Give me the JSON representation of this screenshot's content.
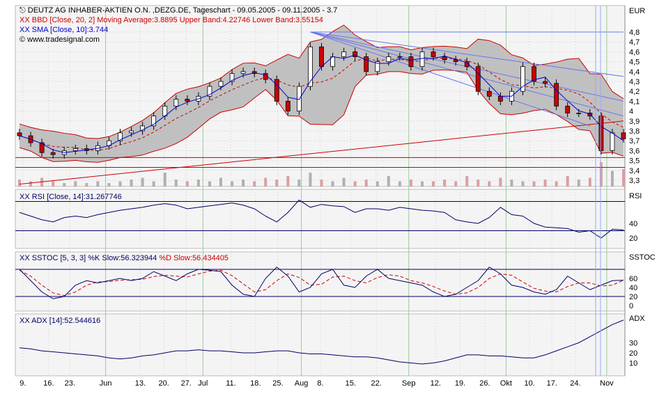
{
  "header": {
    "title": "DEUTZ AG INHABER-AKTIEN O.N. ,DEZG.DE, Tageschart - 09.05.2005 - 09.11.2005 - 3.7",
    "bbd": "XX BBD [Close, 20, 2] Moving Average:3.8895 Upper Band:4.22746 Lower Band:3.55154",
    "sma": "XX SMA [Close, 10]:3.744",
    "copyright": "© www.tradesignal.com"
  },
  "colors": {
    "background": "#ffffff",
    "panel": "#f4f4f4",
    "band_fill": "#c0c0c0",
    "band_line": "#cc0000",
    "sma": "#0000cc",
    "bull": "#ffffff",
    "bear": "#cc0000",
    "level": "#000066",
    "rsi": "#000066",
    "k": "#000066",
    "d": "#cc0000",
    "adx": "#000066",
    "fan": "#6677ee"
  },
  "chart_data": [
    {
      "type": "candlestick",
      "title": "DEUTZ AG INHABER-AKTIEN O.N. ,DEZG.DE, Tageschart - 09.05.2005 - 09.11.2005 - 3.7",
      "ylabel": "EUR",
      "ylim": [
        3.2,
        4.9
      ],
      "yticks": [
        "4,8",
        "4,7",
        "4,6",
        "4,5",
        "4,4",
        "4,3",
        "4,2",
        "4,1",
        "4",
        "3,9",
        "3,8",
        "3,7",
        "3,6",
        "3,5",
        "3,4",
        "3,3"
      ],
      "close": [
        3.75,
        3.68,
        3.58,
        3.56,
        3.6,
        3.62,
        3.6,
        3.65,
        3.7,
        3.78,
        3.8,
        3.85,
        3.95,
        4.05,
        4.12,
        4.1,
        4.15,
        4.25,
        4.3,
        4.38,
        4.4,
        4.38,
        4.32,
        4.1,
        4.0,
        4.25,
        4.65,
        4.45,
        4.55,
        4.6,
        4.55,
        4.4,
        4.5,
        4.55,
        4.55,
        4.45,
        4.6,
        4.55,
        4.52,
        4.5,
        4.45,
        4.2,
        4.15,
        4.1,
        4.2,
        4.45,
        4.3,
        4.28,
        4.05,
        3.98,
        3.98,
        3.95,
        3.6,
        3.78,
        3.72
      ],
      "volume": [
        4,
        3,
        5,
        3,
        2,
        3,
        2,
        3,
        2,
        3,
        4,
        5,
        3,
        8,
        4,
        3,
        4,
        3,
        5,
        3,
        4,
        3,
        5,
        4,
        6,
        4,
        8,
        4,
        3,
        5,
        3,
        4,
        3,
        6,
        3,
        4,
        3,
        3,
        4,
        3,
        6,
        4,
        3,
        5,
        4,
        3,
        3,
        4,
        3,
        6,
        4,
        5,
        14,
        9,
        10
      ],
      "horizontal_lines": [
        3.53,
        3.43
      ],
      "trendlines": [
        {
          "color": "red",
          "from": [
            0,
            3.26
          ],
          "to": [
            54,
            3.9
          ]
        },
        {
          "color": "blue",
          "from": [
            26,
            4.8
          ],
          "to": [
            54,
            4.8
          ]
        },
        {
          "color": "blue",
          "from": [
            26,
            4.8
          ],
          "to": [
            54,
            4.35
          ]
        },
        {
          "color": "blue",
          "from": [
            26,
            4.8
          ],
          "to": [
            54,
            4.1
          ]
        },
        {
          "color": "blue",
          "from": [
            26,
            4.8
          ],
          "to": [
            54,
            3.95
          ]
        },
        {
          "color": "blue",
          "from": [
            26,
            4.8
          ],
          "to": [
            51,
            3.85
          ]
        }
      ]
    },
    {
      "type": "line",
      "label": "XX RSI [Close, 14]:31.267746",
      "axis_title": "RSI",
      "ylim": [
        0,
        100
      ],
      "yticks": [
        "40",
        "20"
      ],
      "levels": [
        70,
        30
      ],
      "values": [
        55,
        50,
        45,
        42,
        48,
        50,
        48,
        52,
        55,
        58,
        60,
        62,
        65,
        67,
        65,
        60,
        62,
        64,
        66,
        68,
        65,
        60,
        50,
        42,
        55,
        72,
        62,
        66,
        64,
        63,
        55,
        60,
        60,
        58,
        62,
        60,
        58,
        57,
        55,
        45,
        42,
        40,
        48,
        62,
        52,
        50,
        40,
        35,
        34,
        33,
        28,
        30,
        20,
        32,
        31
      ]
    },
    {
      "type": "line",
      "label": "XX SSTOC [5, 3, 3] %K Slow:56.323944",
      "label_d": "%D Slow:56.434405",
      "axis_title": "SSTOC",
      "ylim": [
        0,
        100
      ],
      "yticks": [
        "60",
        "40",
        "20",
        "0"
      ],
      "levels": [
        80,
        20
      ],
      "k": [
        80,
        55,
        30,
        15,
        20,
        45,
        55,
        50,
        55,
        60,
        55,
        60,
        75,
        65,
        55,
        70,
        80,
        78,
        75,
        45,
        25,
        20,
        60,
        85,
        65,
        30,
        40,
        70,
        80,
        45,
        40,
        65,
        80,
        60,
        55,
        50,
        45,
        30,
        20,
        25,
        40,
        55,
        85,
        70,
        45,
        40,
        30,
        25,
        35,
        65,
        50,
        35,
        45,
        55,
        56
      ],
      "d": [
        78,
        65,
        45,
        28,
        22,
        30,
        45,
        52,
        53,
        56,
        57,
        58,
        64,
        67,
        65,
        63,
        70,
        76,
        78,
        66,
        48,
        30,
        35,
        55,
        70,
        62,
        45,
        47,
        63,
        65,
        55,
        50,
        62,
        68,
        65,
        55,
        50,
        42,
        32,
        25,
        28,
        40,
        60,
        70,
        67,
        52,
        38,
        32,
        30,
        42,
        50,
        50,
        43,
        45,
        56
      ]
    },
    {
      "type": "line",
      "label": "XX ADX [14]:52.544616",
      "axis_title": "ADX",
      "ylim": [
        0,
        60
      ],
      "yticks": [
        "30",
        "20",
        "10"
      ],
      "values": [
        25,
        24,
        22,
        21,
        20,
        19,
        18,
        17,
        15,
        14,
        15,
        17,
        18,
        20,
        22,
        22,
        23,
        22,
        22,
        21,
        20,
        20,
        21,
        22,
        22,
        20,
        19,
        19,
        18,
        17,
        16,
        16,
        15,
        13,
        11,
        10,
        9,
        10,
        12,
        15,
        18,
        18,
        17,
        17,
        16,
        15,
        15,
        18,
        22,
        26,
        30,
        36,
        42,
        48,
        52.5
      ]
    }
  ],
  "x_axis": {
    "ticks": [
      {
        "label": "9.",
        "at": 0.3
      },
      {
        "label": "16.",
        "at": 2.6
      },
      {
        "label": "23.",
        "at": 4.5
      },
      {
        "label": "Jun",
        "at": 7.7
      },
      {
        "label": "13.",
        "at": 10.8
      },
      {
        "label": "20.",
        "at": 12.9
      },
      {
        "label": "27.",
        "at": 14.9
      },
      {
        "label": "Jul",
        "at": 16.4
      },
      {
        "label": "11.",
        "at": 18.9
      },
      {
        "label": "18.",
        "at": 21.1
      },
      {
        "label": "25.",
        "at": 23.1
      },
      {
        "label": "Aug",
        "at": 25.2
      },
      {
        "label": "8.",
        "at": 26.9
      },
      {
        "label": "15.",
        "at": 29.6
      },
      {
        "label": "22.",
        "at": 31.9
      },
      {
        "label": "Sep",
        "at": 34.8
      },
      {
        "label": "12.",
        "at": 37.2
      },
      {
        "label": "19.",
        "at": 39.4
      },
      {
        "label": "26.",
        "at": 41.6
      },
      {
        "label": "Okt",
        "at": 43.5
      },
      {
        "label": "10.",
        "at": 45.6
      },
      {
        "label": "17.",
        "at": 47.6
      },
      {
        "label": "24.",
        "at": 49.7
      },
      {
        "label": "Nov",
        "at": 52.5
      }
    ]
  }
}
